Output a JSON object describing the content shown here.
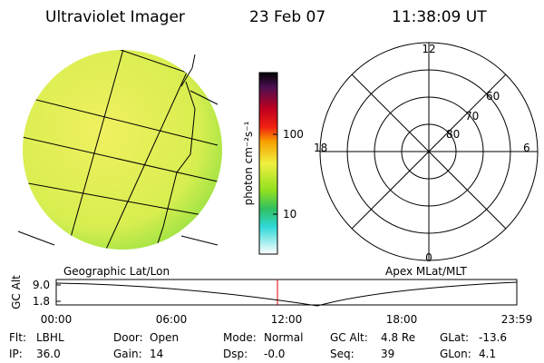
{
  "header": {
    "title": "Ultraviolet Imager",
    "date": "23 Feb 07",
    "time": "11:38:09 UT"
  },
  "colorbar": {
    "label": "photon cm⁻²s⁻¹",
    "ticks": [
      "100",
      "10"
    ]
  },
  "left_panel": {
    "label": "Geographic Lat/Lon"
  },
  "right_panel": {
    "label": "Apex MLat/MLT",
    "mlt_labels": [
      "12",
      "18",
      "6",
      "0"
    ],
    "lat_labels": [
      "60",
      "70",
      "80"
    ]
  },
  "altitude_plot": {
    "ylabel": "GC Alt",
    "yticks": [
      "9.0",
      "1.8"
    ],
    "xticks": [
      "00:00",
      "06:00",
      "12:00",
      "18:00",
      "23:59"
    ]
  },
  "info": {
    "rows": [
      [
        [
          "Flt:",
          "LBHL"
        ],
        [
          "Door:",
          "Open"
        ],
        [
          "Mode:",
          "Normal"
        ],
        [
          "GC Alt:",
          "4.8 Re"
        ],
        [
          "GLat:",
          "-13.6"
        ]
      ],
      [
        [
          "IP:",
          "36.0"
        ],
        [
          "Gain:",
          "14"
        ],
        [
          "Dsp:",
          "-0.0"
        ],
        [
          "Seq:",
          "39"
        ],
        [
          "GLon:",
          "4.1"
        ]
      ]
    ]
  }
}
